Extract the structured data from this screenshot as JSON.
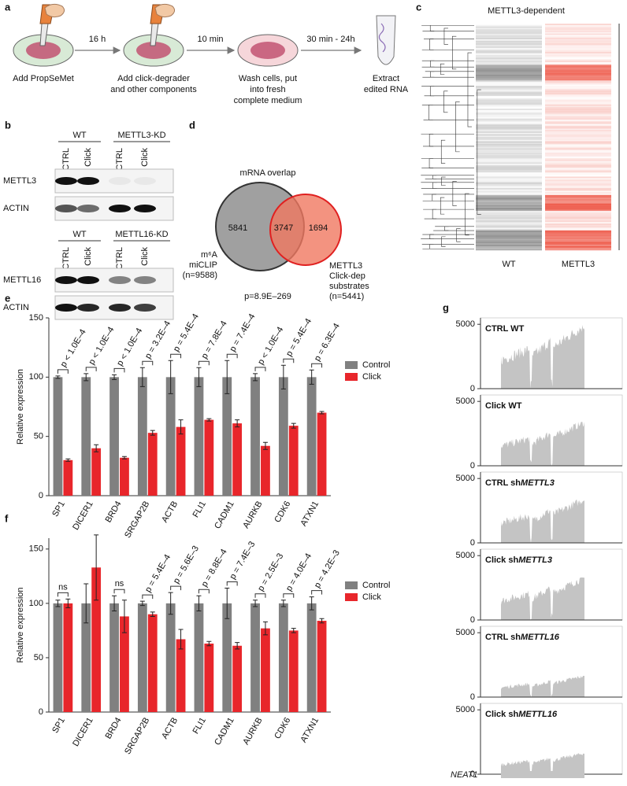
{
  "panel_a": {
    "label": "a",
    "steps": [
      {
        "lines": [
          "Add PropSeMet"
        ]
      },
      {
        "lines": [
          "Add click-degrader",
          "and other components"
        ]
      },
      {
        "lines": [
          "Wash cells, put",
          "into fresh",
          "complete medium"
        ]
      },
      {
        "lines": [
          "Extract",
          "edited RNA"
        ]
      }
    ],
    "intervals": [
      "16 h",
      "10 min",
      "30 min - 24h"
    ]
  },
  "panel_b": {
    "label": "b",
    "blots": [
      {
        "groups": [
          "WT",
          "METTL3-KD"
        ],
        "lanes": [
          "CTRL",
          "Click",
          "CTRL",
          "Click"
        ],
        "rows": [
          "METTL3",
          "ACTIN"
        ]
      },
      {
        "groups": [
          "WT",
          "METTL16-KD"
        ],
        "lanes": [
          "CTRL",
          "Click",
          "CTRL",
          "Click"
        ],
        "rows": [
          "METTL16",
          "ACTIN"
        ]
      }
    ]
  },
  "panel_c": {
    "label": "c",
    "title": "METTL3-dependent",
    "columns": [
      "WT",
      "METTL3"
    ]
  },
  "panel_d": {
    "label": "d",
    "title": "mRNA overlap",
    "counts": {
      "left_only": 5841,
      "both": 3747,
      "right_only": 1694
    },
    "sets": [
      {
        "lines": [
          "m⁶A",
          "miCLIP",
          "(n=9588)"
        ]
      },
      {
        "lines": [
          "METTL3",
          "Click-dep",
          "substrates",
          "(n=5441)"
        ]
      }
    ],
    "p_value": "p=8.9E–269"
  },
  "chart_data": [
    {
      "type": "bar",
      "panel_label": "e",
      "y_label": "Relative expression",
      "categories": [
        "SP1",
        "DICER1",
        "BRD4",
        "SRGAP2B",
        "ACTB",
        "FLI1",
        "CADM1",
        "AURKB",
        "CDK6",
        "ATXN1"
      ],
      "series": [
        {
          "name": "Control",
          "color": "#808080",
          "values": [
            100,
            100,
            100,
            100,
            100,
            100,
            100,
            100,
            100,
            100
          ],
          "errors": [
            1,
            3,
            2,
            8,
            14,
            8,
            14,
            3,
            10,
            6
          ]
        },
        {
          "name": "Click",
          "color": "#e8262b",
          "values": [
            30,
            40,
            32,
            53,
            58,
            64,
            61,
            42,
            59,
            70
          ],
          "errors": [
            1,
            3,
            1,
            2,
            6,
            1,
            3,
            3,
            2,
            1
          ]
        }
      ],
      "p_labels": [
        "p < 1.0E–4",
        "p < 1.0E–4",
        "p < 1.0E–4",
        "p = 3.2E–4",
        "p = 5.4E–4",
        "p = 7.8E–4",
        "p = 7.4E–4",
        "p < 1.0E–4",
        "p = 5.4E–4",
        "p = 6.3E–4"
      ],
      "ylim": [
        0,
        150
      ],
      "yticks": [
        0,
        50,
        100,
        150
      ],
      "legend": "right"
    },
    {
      "type": "bar",
      "panel_label": "f",
      "y_label": "Relative expression",
      "categories": [
        "SP1",
        "DICER1",
        "BRD4",
        "SRGAP2B",
        "ACTB",
        "FLI1",
        "CADM1",
        "AURKB",
        "CDK6",
        "ATXN1"
      ],
      "series": [
        {
          "name": "Control",
          "color": "#808080",
          "values": [
            100,
            100,
            100,
            100,
            100,
            100,
            100,
            100,
            100,
            100
          ],
          "errors": [
            3,
            18,
            7,
            2,
            10,
            7,
            14,
            3,
            3,
            6
          ]
        },
        {
          "name": "Click",
          "color": "#e8262b",
          "values": [
            100,
            133,
            88,
            90,
            67,
            63,
            61,
            77,
            75,
            84
          ],
          "errors": [
            4,
            30,
            15,
            2,
            9,
            2,
            3,
            6,
            2,
            2
          ]
        }
      ],
      "p_labels": [
        "ns",
        null,
        "ns",
        "p = 5.4E–4",
        "p = 5.6E–3",
        "p = 8.8E–4",
        "p = 7.4E–3",
        "p = 2.5E–3",
        "p = 4.0E–4",
        "p = 4.2E–3"
      ],
      "ylim": [
        0,
        160
      ],
      "yticks": [
        0,
        50,
        100,
        150
      ],
      "legend": "right"
    },
    {
      "type": "coverage",
      "panel_label": "g",
      "color": "#c4c4c4",
      "tracks": [
        {
          "title": "CTRL WT"
        },
        {
          "title": "Click WT"
        },
        {
          "title": "CTRL sh",
          "title_italic": "METTL3"
        },
        {
          "title": "Click sh",
          "title_italic": "METTL3"
        },
        {
          "title": "CTRL sh",
          "title_italic": "METTL16"
        },
        {
          "title": "Click sh",
          "title_italic": "METTL16"
        }
      ],
      "gene": "NEAT1",
      "ylim": [
        0,
        5500
      ],
      "yticks": [
        0,
        5000
      ]
    }
  ]
}
